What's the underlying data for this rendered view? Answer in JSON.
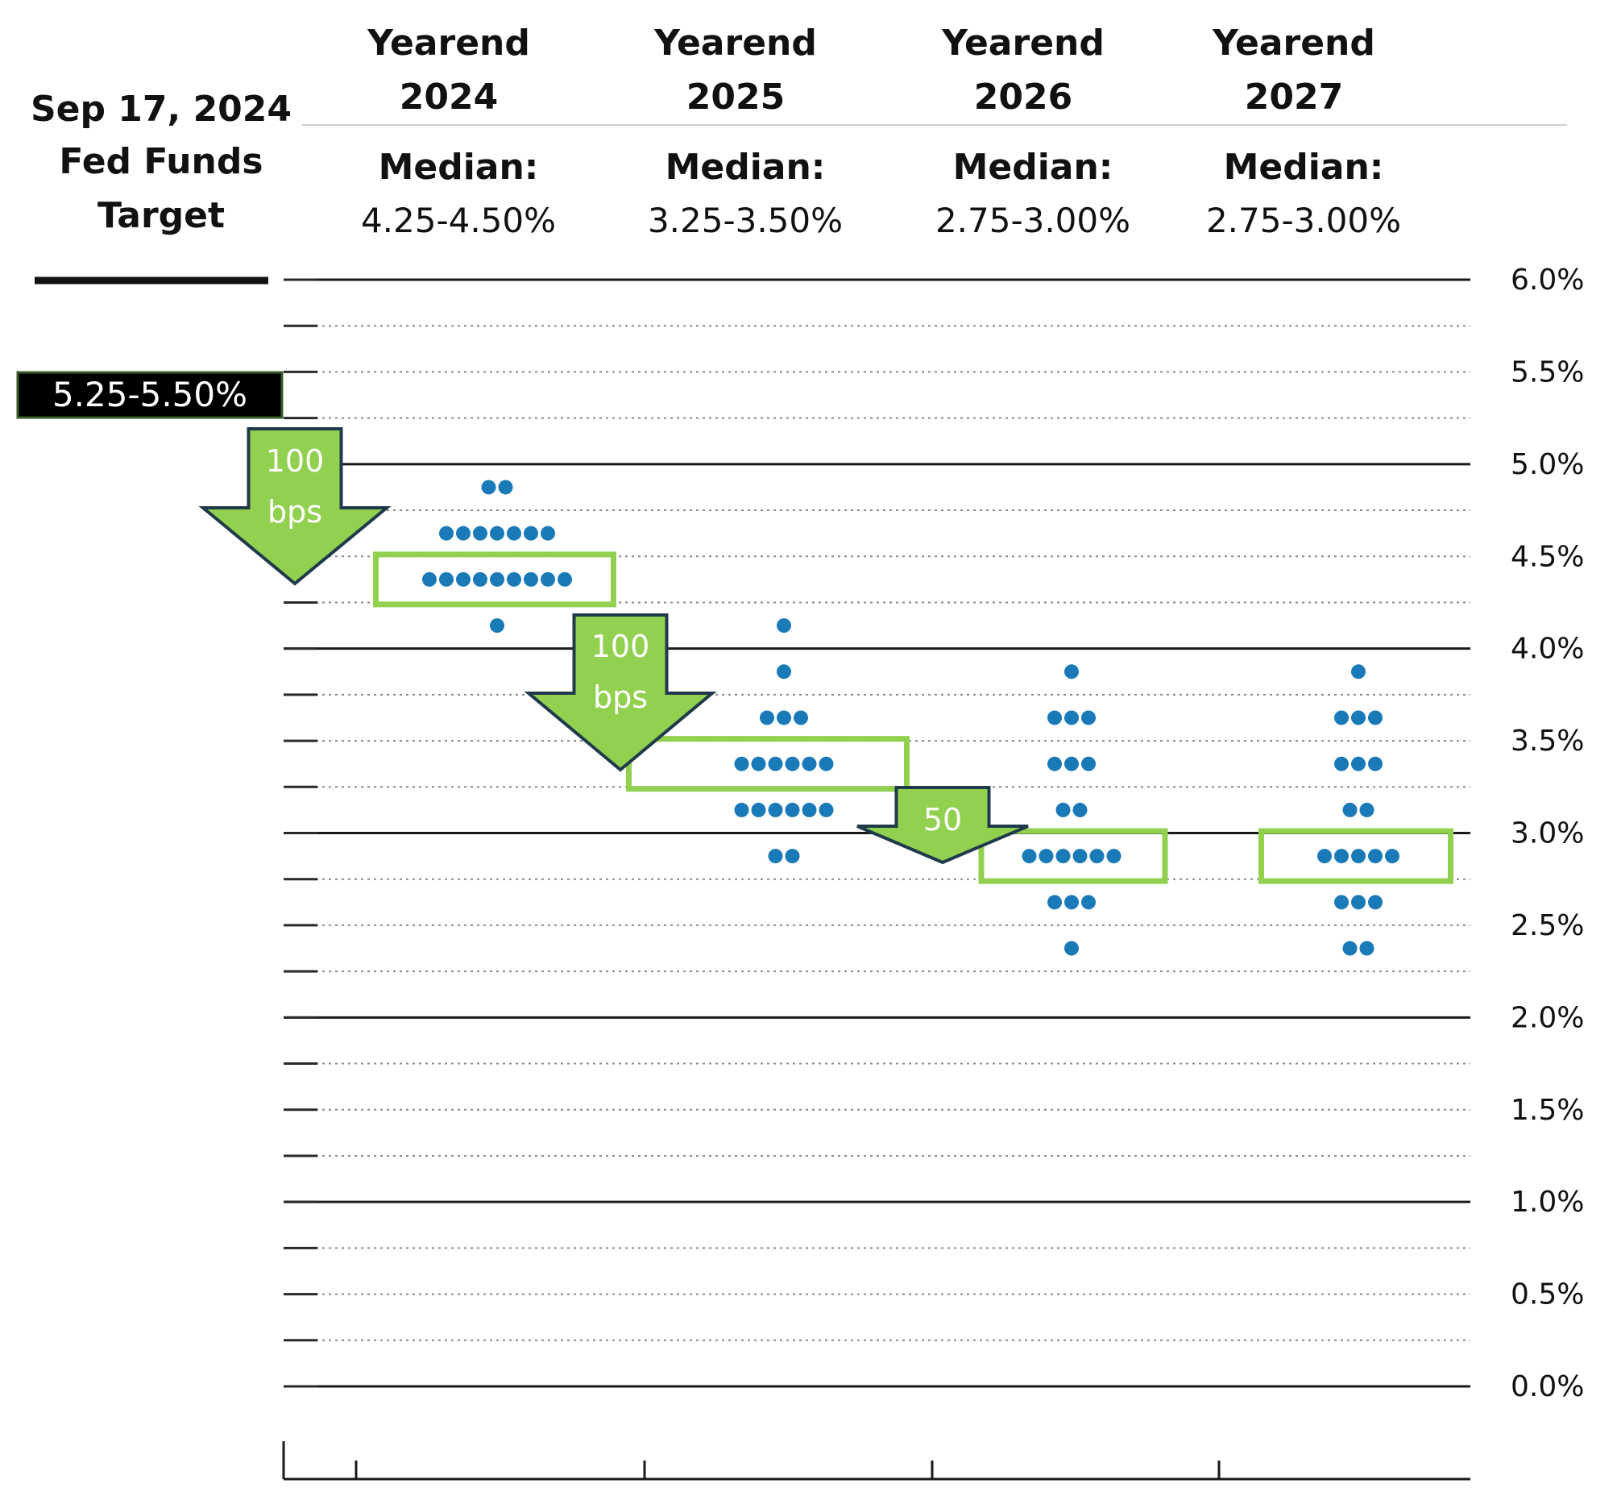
{
  "chart_data": {
    "type": "scatter",
    "title": "",
    "xlabel": "",
    "ylabel": "",
    "current": {
      "label_lines": [
        "Sep 17, 2024",
        "Fed Funds",
        "Target"
      ],
      "value_label": "5.25-5.50%",
      "value": 5.375
    },
    "years": [
      {
        "label_lines": [
          "Yearend",
          "2024"
        ],
        "median_label": "Median:",
        "median_value": "4.25-4.50%",
        "median": 4.375
      },
      {
        "label_lines": [
          "Yearend",
          "2025"
        ],
        "median_label": "Median:",
        "median_value": "3.25-3.50%",
        "median": 3.375
      },
      {
        "label_lines": [
          "Yearend",
          "2026"
        ],
        "median_label": "Median:",
        "median_value": "2.75-3.00%",
        "median": 2.875
      },
      {
        "label_lines": [
          "Yearend",
          "2027"
        ],
        "median_label": "Median:",
        "median_value": "2.75-3.00%",
        "median": 2.875
      }
    ],
    "series": [
      {
        "year": "2024",
        "points": [
          {
            "y": 4.875,
            "count": 2
          },
          {
            "y": 4.625,
            "count": 7
          },
          {
            "y": 4.375,
            "count": 9
          },
          {
            "y": 4.125,
            "count": 1
          }
        ]
      },
      {
        "year": "2025",
        "points": [
          {
            "y": 4.125,
            "count": 1
          },
          {
            "y": 3.875,
            "count": 1
          },
          {
            "y": 3.625,
            "count": 3
          },
          {
            "y": 3.375,
            "count": 6
          },
          {
            "y": 3.125,
            "count": 6
          },
          {
            "y": 2.875,
            "count": 2
          }
        ]
      },
      {
        "year": "2026",
        "points": [
          {
            "y": 3.875,
            "count": 1
          },
          {
            "y": 3.625,
            "count": 3
          },
          {
            "y": 3.375,
            "count": 3
          },
          {
            "y": 3.125,
            "count": 2
          },
          {
            "y": 2.875,
            "count": 6
          },
          {
            "y": 2.625,
            "count": 3
          },
          {
            "y": 2.375,
            "count": 1
          }
        ]
      },
      {
        "year": "2027",
        "points": [
          {
            "y": 3.875,
            "count": 1
          },
          {
            "y": 3.625,
            "count": 3
          },
          {
            "y": 3.375,
            "count": 3
          },
          {
            "y": 3.125,
            "count": 2
          },
          {
            "y": 2.875,
            "count": 5
          },
          {
            "y": 2.625,
            "count": 3
          },
          {
            "y": 2.375,
            "count": 2
          }
        ]
      }
    ],
    "y_ticks": [
      "6.0%",
      "5.5%",
      "5.0%",
      "4.5%",
      "4.0%",
      "3.5%",
      "3.0%",
      "2.5%",
      "2.0%",
      "1.5%",
      "1.0%",
      "0.5%",
      "0.0%"
    ],
    "ylim": [
      0,
      6
    ],
    "annotations": [
      {
        "lines": [
          "100",
          "bps"
        ],
        "from": 5.375,
        "to": 4.375
      },
      {
        "lines": [
          "100",
          "bps"
        ],
        "from": 4.375,
        "to": 3.375
      },
      {
        "lines": [
          "50"
        ],
        "from": 3.375,
        "to": 2.875
      }
    ],
    "grid": "solid major lines every 1%, dotted minor lines every 0.25%",
    "colors": {
      "dot": "#1a7ab8",
      "median_box": "#92d050",
      "arrow_fill": "#92d050",
      "arrow_stroke": "#1f3a4a",
      "current_box": "#000000",
      "current_box_border": "#3a5a2a"
    }
  }
}
